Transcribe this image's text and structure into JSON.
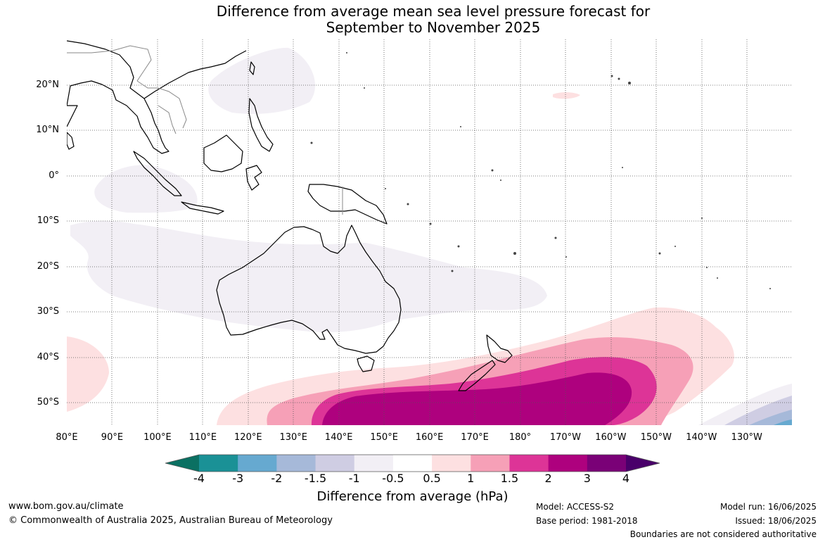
{
  "title_line1": "Difference from average mean sea level pressure forecast for",
  "title_line2": "September to November 2025",
  "lat_labels": [
    "20°N",
    "10°N",
    "0°",
    "10°S",
    "20°S",
    "30°S",
    "40°S",
    "50°S"
  ],
  "lon_labels": [
    "80°E",
    "90°E",
    "100°E",
    "110°E",
    "120°E",
    "130°E",
    "140°E",
    "150°E",
    "160°E",
    "170°E",
    "180°",
    "170°W",
    "160°W",
    "150°W",
    "140°W",
    "130°W"
  ],
  "colorbar": {
    "label": "Difference from average (hPa)",
    "ticks": [
      "-4",
      "-3",
      "-2",
      "-1.5",
      "-1",
      "-0.5",
      "0.5",
      "1",
      "1.5",
      "2",
      "3",
      "4"
    ],
    "colors": [
      "#0b7062",
      "#1a9196",
      "#66a9d0",
      "#a6b9d9",
      "#cfcde3",
      "#f2eff5",
      "#ffffff",
      "#fde0e1",
      "#f6a0b7",
      "#dd3497",
      "#ae017e",
      "#7a0177",
      "#49006a"
    ]
  },
  "footer": {
    "website": "www.bom.gov.au/climate",
    "copyright": "© Commonwealth of Australia 2025, Australian Bureau of Meteorology",
    "model": "Model: ACCESS-S2",
    "base_period": "Base period: 1981-2018",
    "model_run": "Model run: 16/06/2025",
    "issued": "Issued: 18/06/2025",
    "disclaimer": "Boundaries are not considered authoritative"
  }
}
